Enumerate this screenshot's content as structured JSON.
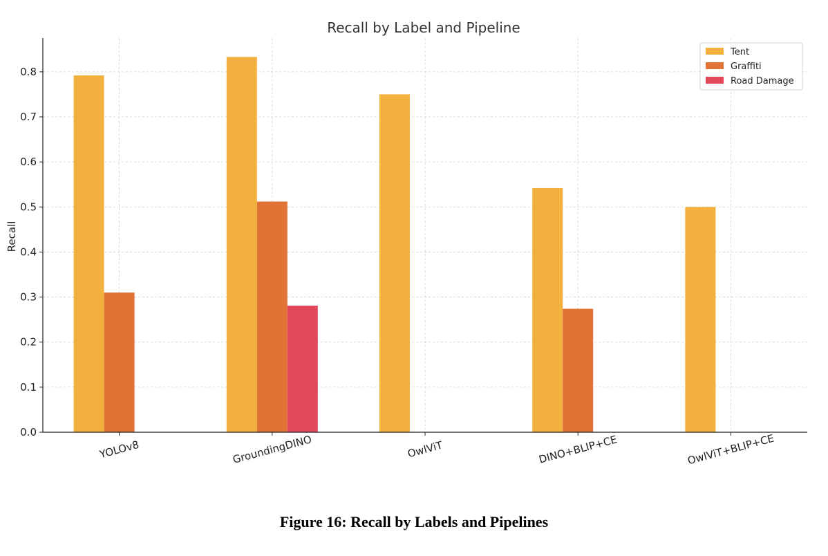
{
  "caption": "Figure 16: Recall by Labels and Pipelines",
  "chart_data": {
    "type": "bar",
    "title": "Recall by Label and Pipeline",
    "xlabel": "",
    "ylabel": "Recall",
    "categories": [
      "YOLOv8",
      "GroundingDINO",
      "OwlViT",
      "DINO+BLIP+CE",
      "OwlViT+BLIP+CE"
    ],
    "series": [
      {
        "name": "Tent",
        "color": "#f2b13e",
        "values": [
          0.792,
          0.833,
          0.75,
          0.542,
          0.5
        ]
      },
      {
        "name": "Graffiti",
        "color": "#e07335",
        "values": [
          0.31,
          0.512,
          0.0,
          0.274,
          0.0
        ]
      },
      {
        "name": "Road Damage",
        "color": "#e2485a",
        "values": [
          0.0,
          0.281,
          0.0,
          0.0,
          0.0
        ]
      }
    ],
    "ylim": [
      0,
      0.875
    ],
    "yticks": [
      "0.0",
      "0.1",
      "0.2",
      "0.3",
      "0.4",
      "0.5",
      "0.6",
      "0.7",
      "0.8"
    ],
    "grid": true,
    "legend_position": "top-right"
  }
}
